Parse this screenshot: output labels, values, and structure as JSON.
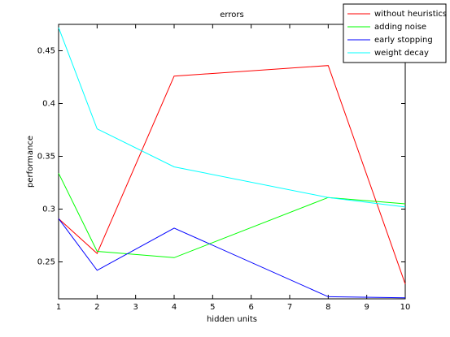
{
  "chart_data": {
    "type": "line",
    "title": "errors",
    "x_label": "hidden units",
    "y_label": "performance",
    "x": [
      1,
      2,
      4,
      8,
      10
    ],
    "series": [
      {
        "name": "without heuristics",
        "color": "#ff0000",
        "values": [
          0.291,
          0.258,
          0.426,
          0.436,
          0.229
        ]
      },
      {
        "name": "adding noise",
        "color": "#00ff00",
        "values": [
          0.334,
          0.26,
          0.254,
          0.311,
          0.305
        ]
      },
      {
        "name": "early stopping",
        "color": "#0000ff",
        "values": [
          0.291,
          0.242,
          0.282,
          0.217,
          0.216
        ]
      },
      {
        "name": "weight decay",
        "color": "#00ffff",
        "values": [
          0.472,
          0.376,
          0.34,
          0.311,
          0.302
        ]
      }
    ],
    "xlim": [
      1,
      10
    ],
    "xticks": [
      1,
      2,
      3,
      4,
      5,
      6,
      7,
      8,
      9,
      10
    ],
    "ylim": [
      0.215,
      0.475
    ],
    "yticks": [
      0.25,
      0.3,
      0.35,
      0.4,
      0.45
    ],
    "legend": "top-right"
  }
}
